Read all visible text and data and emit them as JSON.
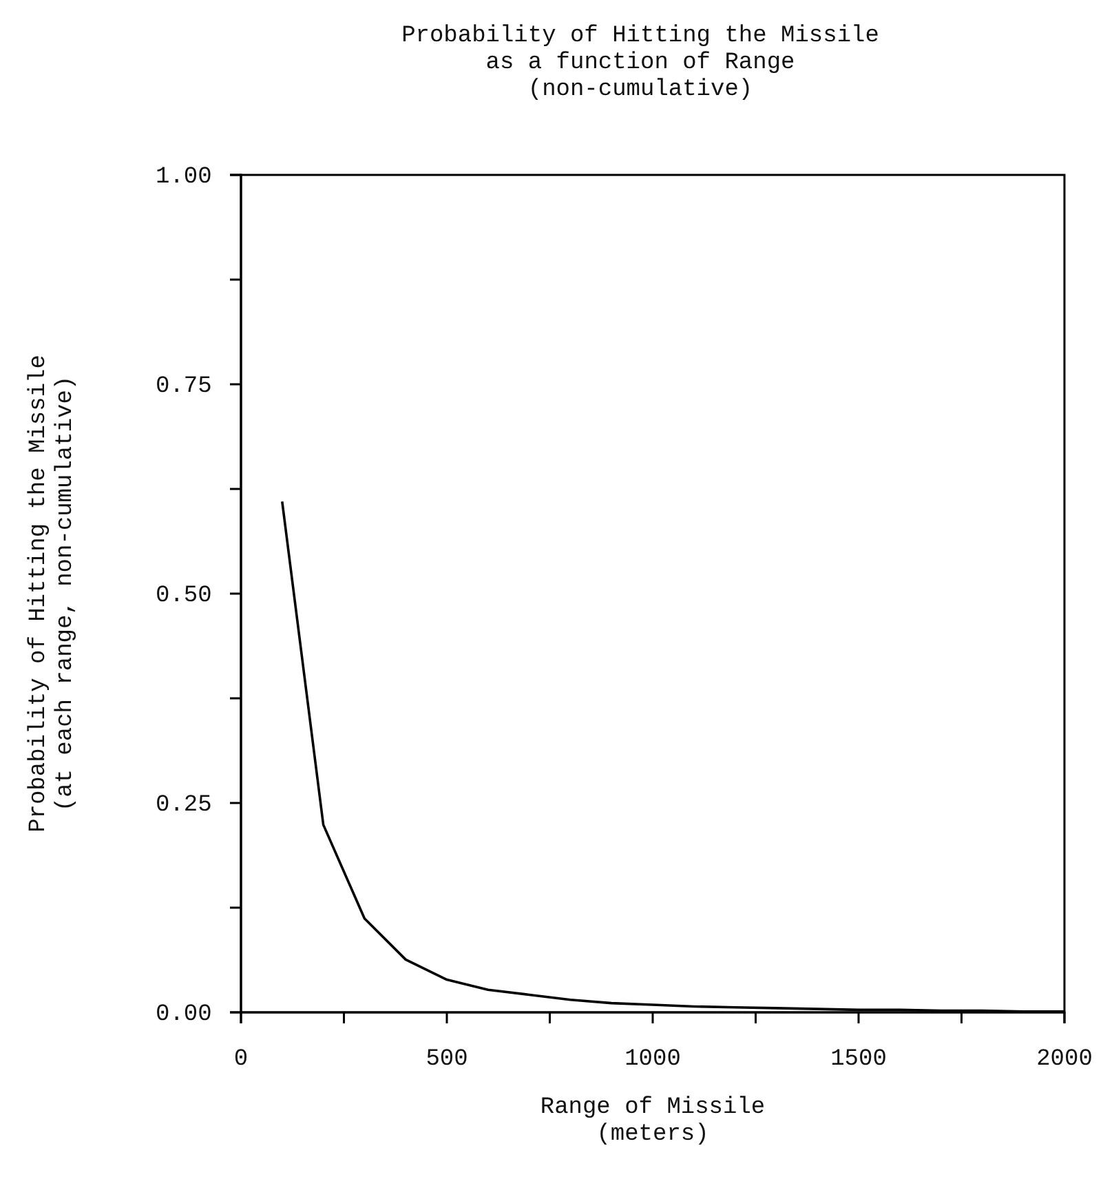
{
  "chart_data": {
    "type": "line",
    "title": "Probability of Hitting the Missile\nas a function of Range",
    "subtitle": "(non-cumulative)",
    "xlabel": "Range of Missile\n(meters)",
    "ylabel": "Probability of Hitting the Missile\n(at each range, non-cumulative)",
    "x": [
      100,
      200,
      300,
      400,
      500,
      600,
      700,
      800,
      900,
      1000,
      1100,
      1200,
      1300,
      1400,
      1500,
      1600,
      1700,
      1800,
      1900,
      2000
    ],
    "series": [
      {
        "color": "#000000",
        "values": [
          0.61,
          0.224,
          0.112,
          0.063,
          0.039,
          0.027,
          0.021,
          0.015,
          0.011,
          0.009,
          0.007,
          0.006,
          0.005,
          0.004,
          0.003,
          0.003,
          0.002,
          0.002,
          0.001,
          0.001
        ]
      }
    ],
    "xlim": [
      0,
      2000
    ],
    "ylim": [
      0,
      1
    ],
    "xticks": [
      0,
      {
        "value": 250,
        "label": null
      },
      500,
      {
        "value": 750,
        "label": null
      },
      1000,
      {
        "value": 1250,
        "label": null
      },
      1500,
      {
        "value": 1750,
        "label": null
      },
      2000
    ],
    "yticks": [
      {
        "value": 0,
        "label": "0.00"
      },
      {
        "value": 0.125,
        "label": null
      },
      {
        "value": 0.25,
        "label": "0.25"
      },
      {
        "value": 0.375,
        "label": null
      },
      {
        "value": 0.5,
        "label": "0.50"
      },
      {
        "value": 0.625,
        "label": null
      },
      {
        "value": 0.75,
        "label": "0.75"
      },
      {
        "value": 0.875,
        "label": null
      },
      {
        "value": 1,
        "label": "1.00"
      }
    ],
    "grid": false,
    "marker": "none",
    "line_style": "solid"
  }
}
